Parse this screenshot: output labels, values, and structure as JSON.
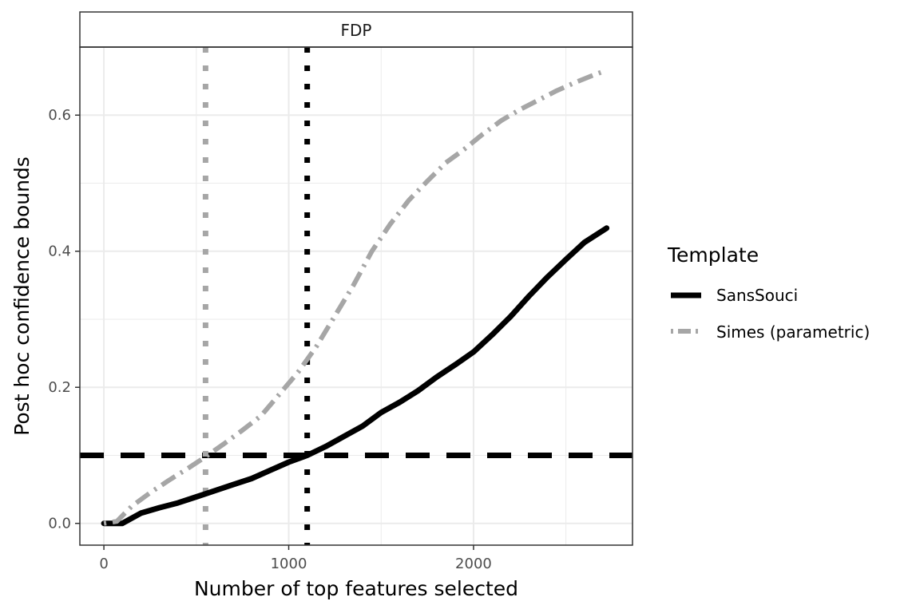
{
  "chart_data": {
    "type": "line",
    "facet_label": "FDP",
    "xlabel": "Number of top features selected",
    "ylabel": "Post hoc confidence bounds",
    "xlim": [
      -130,
      2860
    ],
    "ylim": [
      -0.032,
      0.7
    ],
    "x_ticks": [
      0,
      1000,
      2000
    ],
    "x_tick_labels": [
      "0",
      "1000",
      "2000"
    ],
    "y_ticks": [
      0.0,
      0.2,
      0.4,
      0.6
    ],
    "y_tick_labels": [
      "0.0",
      "0.2",
      "0.4",
      "0.6"
    ],
    "grid": true,
    "legend": {
      "title": "Template",
      "position": "right"
    },
    "series": [
      {
        "name": "SansSouci",
        "color": "#000000",
        "linestyle": "solid",
        "x": [
          0,
          100,
          200,
          300,
          400,
          500,
          600,
          700,
          800,
          900,
          1000,
          1100,
          1200,
          1300,
          1400,
          1500,
          1600,
          1700,
          1800,
          1900,
          2000,
          2100,
          2200,
          2300,
          2400,
          2500,
          2600,
          2720
        ],
        "y": [
          0.0,
          0.0,
          0.015,
          0.023,
          0.03,
          0.039,
          0.048,
          0.057,
          0.066,
          0.078,
          0.09,
          0.1,
          0.113,
          0.128,
          0.143,
          0.163,
          0.178,
          0.195,
          0.215,
          0.233,
          0.252,
          0.277,
          0.304,
          0.334,
          0.362,
          0.388,
          0.413,
          0.434
        ]
      },
      {
        "name": "Simes (parametric)",
        "color": "#a6a6a6",
        "linestyle": "dotdash",
        "x": [
          0,
          70,
          150,
          250,
          350,
          450,
          550,
          650,
          750,
          850,
          950,
          1050,
          1150,
          1250,
          1350,
          1450,
          1550,
          1650,
          1750,
          1850,
          1950,
          2050,
          2150,
          2250,
          2350,
          2450,
          2550,
          2650,
          2720
        ],
        "y": [
          0.0,
          0.003,
          0.025,
          0.045,
          0.063,
          0.08,
          0.098,
          0.117,
          0.137,
          0.158,
          0.19,
          0.222,
          0.26,
          0.305,
          0.35,
          0.4,
          0.44,
          0.475,
          0.503,
          0.53,
          0.55,
          0.572,
          0.592,
          0.608,
          0.622,
          0.636,
          0.648,
          0.659,
          0.666
        ]
      }
    ],
    "reference_lines": [
      {
        "orientation": "horizontal",
        "value": 0.1,
        "color": "#000000",
        "linestyle": "dashed"
      },
      {
        "orientation": "vertical",
        "value": 1100,
        "color": "#000000",
        "linestyle": "dotted"
      },
      {
        "orientation": "vertical",
        "value": 550,
        "color": "#a6a6a6",
        "linestyle": "dotted"
      }
    ]
  }
}
